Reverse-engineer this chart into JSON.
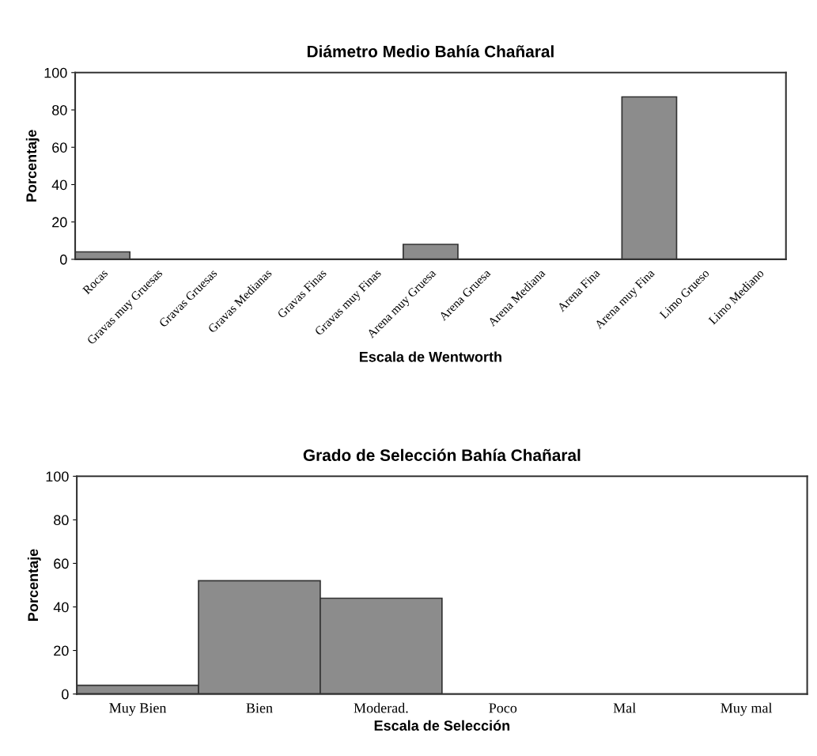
{
  "chart_data": [
    {
      "type": "bar",
      "title": "Diámetro Medio Bahía Chañaral",
      "xlabel": "Escala de Wentworth",
      "ylabel": "Porcentaje",
      "categories": [
        "Rocas",
        "Gravas muy Gruesas",
        "Gravas Gruesas",
        "Gravas Medianas",
        "Gravas Finas",
        "Gravas muy Finas",
        "Arena muy Gruesa",
        "Arena Gruesa",
        "Arena Mediana",
        "Arena Fina",
        "Arena muy Fina",
        "Limo Grueso",
        "Limo Mediano"
      ],
      "values": [
        4,
        0,
        0,
        0,
        0,
        0,
        8,
        0,
        0,
        0,
        87,
        0,
        0
      ],
      "color": "#8c8c8c",
      "ylim": [
        0,
        100
      ],
      "yticks": [
        0,
        20,
        40,
        60,
        80,
        100
      ],
      "grid": false,
      "legend": false
    },
    {
      "type": "bar",
      "title": "Grado de Selección Bahía Chañaral",
      "xlabel": "Escala de Selección",
      "ylabel": "Porcentaje",
      "categories": [
        "Muy Bien",
        "Bien",
        "Moderad.",
        "Poco",
        "Mal",
        "Muy mal"
      ],
      "values": [
        4,
        52,
        44,
        0,
        0,
        0
      ],
      "color": "#8c8c8c",
      "ylim": [
        0,
        100
      ],
      "yticks": [
        0,
        20,
        40,
        60,
        80,
        100
      ],
      "grid": false,
      "legend": false
    }
  ]
}
